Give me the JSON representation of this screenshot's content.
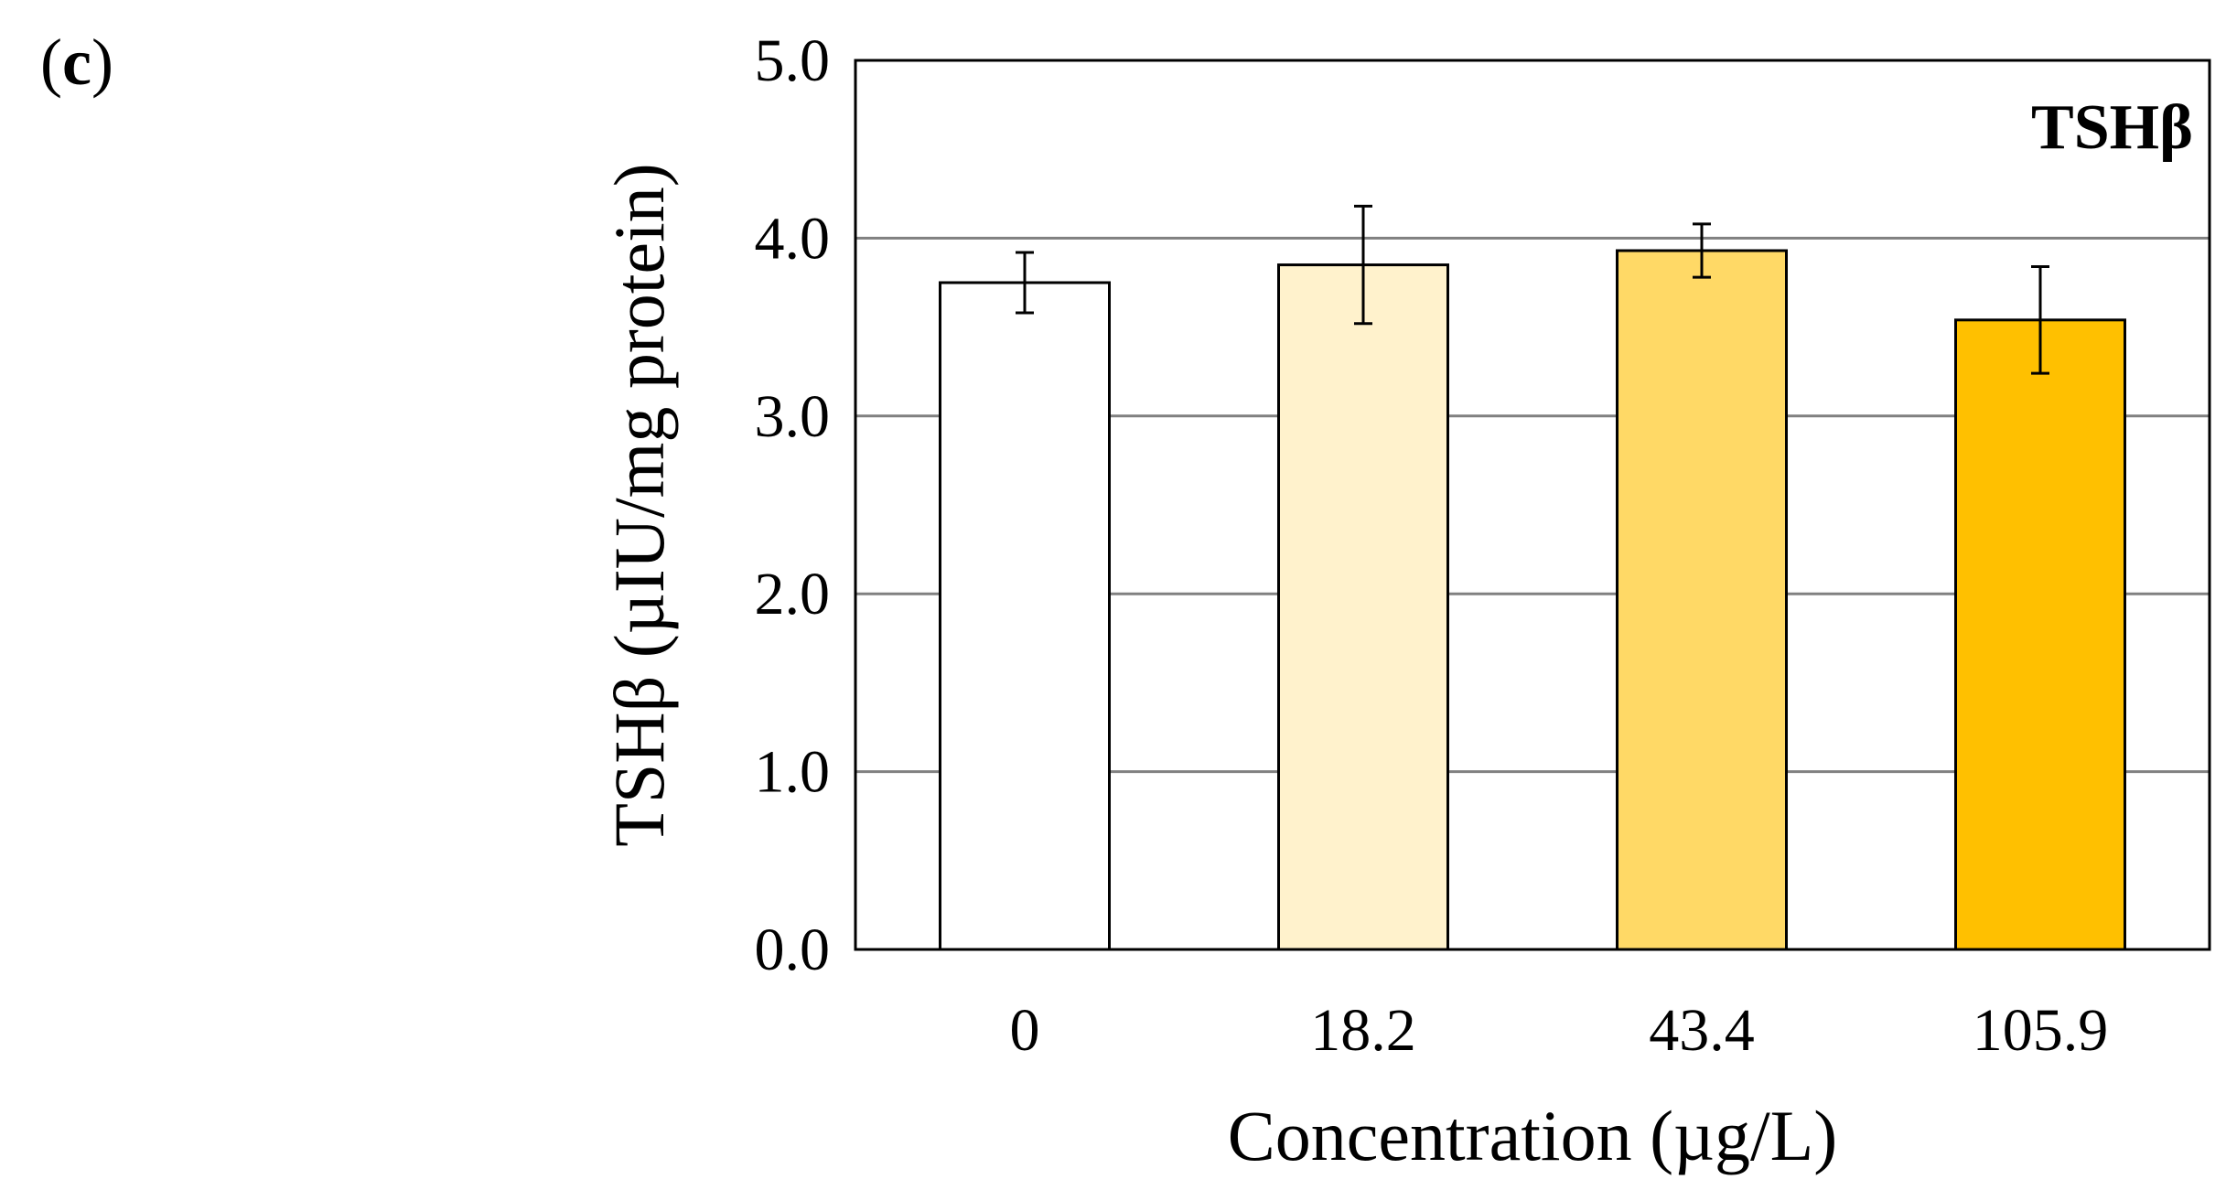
{
  "panel": {
    "open": "(",
    "letter": "c",
    "close": ")"
  },
  "chart_data": {
    "type": "bar",
    "title": "",
    "inset_label": "TSHβ",
    "xlabel": "Concentration (µg/L)",
    "ylabel": "TSHβ (µIU/mg protein)",
    "categories": [
      "0",
      "18.2",
      "43.4",
      "105.9"
    ],
    "values": [
      3.75,
      3.85,
      3.93,
      3.54
    ],
    "errors": [
      0.17,
      0.33,
      0.15,
      0.3
    ],
    "colors": [
      "#ffffff",
      "#fff2cc",
      "#ffd966",
      "#ffc000"
    ],
    "ylim": [
      0,
      5
    ],
    "yticks": [
      "0.0",
      "1.0",
      "2.0",
      "3.0",
      "4.0",
      "5.0"
    ],
    "grid": true,
    "legend": "none"
  }
}
